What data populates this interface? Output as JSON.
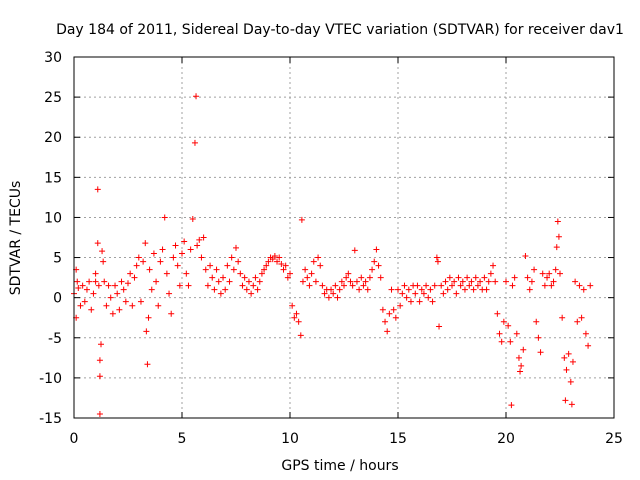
{
  "colors": {
    "series": "#ff0000",
    "grid": "#a0a0a0",
    "axis": "#000000",
    "background": "#ffffff"
  },
  "chart_data": {
    "type": "scatter",
    "title": "Day 184 of 2011, Sidereal Day-to-day VTEC variation (SDTVAR) for receiver dav1",
    "xlabel": "GPS time / hours",
    "ylabel": "SDTVAR / TECUs",
    "xlim": [
      0,
      25
    ],
    "ylim": [
      -15,
      30
    ],
    "xticks": [
      0,
      5,
      10,
      15,
      20,
      25
    ],
    "xtick_labels": [
      "0",
      "5",
      "10",
      "15",
      "20",
      "25"
    ],
    "yticks": [
      -15,
      -10,
      -5,
      0,
      5,
      10,
      15,
      20,
      25,
      30
    ],
    "ytick_labels": [
      "-15",
      "-10",
      "-5",
      "0",
      "5",
      "10",
      "15",
      "20",
      "25",
      "30"
    ],
    "grid": true,
    "marker": "+",
    "series": [
      {
        "name": "SDTVAR",
        "points": [
          [
            0.0,
            0.5
          ],
          [
            0.1,
            3.5
          ],
          [
            0.1,
            -2.5
          ],
          [
            0.15,
            2.0
          ],
          [
            0.2,
            1.2
          ],
          [
            0.3,
            -1.0
          ],
          [
            0.4,
            1.5
          ],
          [
            0.5,
            -0.5
          ],
          [
            0.6,
            1.0
          ],
          [
            0.7,
            2.0
          ],
          [
            0.8,
            -1.5
          ],
          [
            0.9,
            0.5
          ],
          [
            1.0,
            2.0
          ],
          [
            1.0,
            3.0
          ],
          [
            1.1,
            13.5
          ],
          [
            1.1,
            6.8
          ],
          [
            1.15,
            1.5
          ],
          [
            1.2,
            -7.8
          ],
          [
            1.2,
            -9.8
          ],
          [
            1.2,
            -14.5
          ],
          [
            1.25,
            -5.8
          ],
          [
            1.3,
            5.8
          ],
          [
            1.35,
            4.5
          ],
          [
            1.4,
            2.0
          ],
          [
            1.5,
            -1.0
          ],
          [
            1.6,
            1.5
          ],
          [
            1.7,
            0.0
          ],
          [
            1.8,
            -2.0
          ],
          [
            1.9,
            1.5
          ],
          [
            2.0,
            0.5
          ],
          [
            2.1,
            -1.5
          ],
          [
            2.2,
            2.0
          ],
          [
            2.3,
            1.0
          ],
          [
            2.4,
            -0.5
          ],
          [
            2.5,
            1.8
          ],
          [
            2.6,
            3.0
          ],
          [
            2.7,
            -1.0
          ],
          [
            2.8,
            2.5
          ],
          [
            2.9,
            4.0
          ],
          [
            3.0,
            5.0
          ],
          [
            3.1,
            -0.5
          ],
          [
            3.2,
            4.5
          ],
          [
            3.3,
            6.8
          ],
          [
            3.35,
            -4.2
          ],
          [
            3.4,
            -8.3
          ],
          [
            3.45,
            -2.5
          ],
          [
            3.5,
            3.5
          ],
          [
            3.6,
            1.0
          ],
          [
            3.7,
            5.5
          ],
          [
            3.8,
            2.0
          ],
          [
            3.9,
            -1.0
          ],
          [
            4.0,
            4.5
          ],
          [
            4.1,
            6.0
          ],
          [
            4.2,
            10.0
          ],
          [
            4.3,
            3.0
          ],
          [
            4.4,
            0.5
          ],
          [
            4.5,
            -2.0
          ],
          [
            4.6,
            5.0
          ],
          [
            4.7,
            6.5
          ],
          [
            4.8,
            4.0
          ],
          [
            4.9,
            1.5
          ],
          [
            5.0,
            5.5
          ],
          [
            5.1,
            7.0
          ],
          [
            5.2,
            3.0
          ],
          [
            5.3,
            1.5
          ],
          [
            5.4,
            6.0
          ],
          [
            5.5,
            9.8
          ],
          [
            5.6,
            19.3
          ],
          [
            5.65,
            25.1
          ],
          [
            5.7,
            6.5
          ],
          [
            5.8,
            7.2
          ],
          [
            5.9,
            5.0
          ],
          [
            6.0,
            7.5
          ],
          [
            6.1,
            3.5
          ],
          [
            6.2,
            1.5
          ],
          [
            6.3,
            4.0
          ],
          [
            6.4,
            2.5
          ],
          [
            6.5,
            1.0
          ],
          [
            6.6,
            3.5
          ],
          [
            6.7,
            2.0
          ],
          [
            6.8,
            0.5
          ],
          [
            6.9,
            2.5
          ],
          [
            7.0,
            1.0
          ],
          [
            7.1,
            4.0
          ],
          [
            7.2,
            2.0
          ],
          [
            7.3,
            5.0
          ],
          [
            7.4,
            3.5
          ],
          [
            7.5,
            6.2
          ],
          [
            7.6,
            4.5
          ],
          [
            7.7,
            3.0
          ],
          [
            7.8,
            1.5
          ],
          [
            7.9,
            2.5
          ],
          [
            8.0,
            1.0
          ],
          [
            8.1,
            2.0
          ],
          [
            8.2,
            0.5
          ],
          [
            8.3,
            1.5
          ],
          [
            8.4,
            2.5
          ],
          [
            8.5,
            1.0
          ],
          [
            8.6,
            2.0
          ],
          [
            8.7,
            3.0
          ],
          [
            8.8,
            3.5
          ],
          [
            8.9,
            4.0
          ],
          [
            9.0,
            4.5
          ],
          [
            9.1,
            5.0
          ],
          [
            9.2,
            4.8
          ],
          [
            9.3,
            5.2
          ],
          [
            9.4,
            4.5
          ],
          [
            9.5,
            5.0
          ],
          [
            9.6,
            4.2
          ],
          [
            9.7,
            3.5
          ],
          [
            9.8,
            4.0
          ],
          [
            9.9,
            2.5
          ],
          [
            10.0,
            3.0
          ],
          [
            10.1,
            -1.0
          ],
          [
            10.2,
            -2.5
          ],
          [
            10.3,
            -2.0
          ],
          [
            10.4,
            -3.0
          ],
          [
            10.5,
            -4.7
          ],
          [
            10.55,
            9.7
          ],
          [
            10.6,
            2.0
          ],
          [
            10.7,
            3.5
          ],
          [
            10.8,
            2.5
          ],
          [
            10.9,
            1.5
          ],
          [
            11.0,
            3.0
          ],
          [
            11.1,
            4.5
          ],
          [
            11.2,
            2.0
          ],
          [
            11.3,
            5.0
          ],
          [
            11.4,
            4.0
          ],
          [
            11.5,
            1.5
          ],
          [
            11.6,
            0.5
          ],
          [
            11.7,
            1.0
          ],
          [
            11.8,
            0.0
          ],
          [
            11.9,
            1.0
          ],
          [
            12.0,
            0.5
          ],
          [
            12.1,
            1.5
          ],
          [
            12.2,
            0.0
          ],
          [
            12.3,
            1.0
          ],
          [
            12.4,
            2.0
          ],
          [
            12.5,
            1.5
          ],
          [
            12.6,
            2.5
          ],
          [
            12.7,
            3.0
          ],
          [
            12.8,
            2.0
          ],
          [
            12.9,
            1.5
          ],
          [
            13.0,
            5.9
          ],
          [
            13.1,
            2.0
          ],
          [
            13.2,
            1.0
          ],
          [
            13.3,
            2.5
          ],
          [
            13.4,
            1.5
          ],
          [
            13.5,
            2.0
          ],
          [
            13.6,
            1.0
          ],
          [
            13.7,
            2.5
          ],
          [
            13.8,
            3.5
          ],
          [
            13.9,
            4.5
          ],
          [
            14.0,
            6.0
          ],
          [
            14.1,
            4.0
          ],
          [
            14.2,
            2.5
          ],
          [
            14.3,
            -1.5
          ],
          [
            14.4,
            -3.0
          ],
          [
            14.5,
            -4.2
          ],
          [
            14.6,
            -2.0
          ],
          [
            14.7,
            1.0
          ],
          [
            14.8,
            -1.5
          ],
          [
            14.9,
            -2.5
          ],
          [
            15.0,
            1.0
          ],
          [
            15.1,
            -1.0
          ],
          [
            15.2,
            0.5
          ],
          [
            15.3,
            1.5
          ],
          [
            15.4,
            0.0
          ],
          [
            15.5,
            1.0
          ],
          [
            15.6,
            -0.5
          ],
          [
            15.7,
            1.5
          ],
          [
            15.8,
            0.5
          ],
          [
            15.9,
            1.5
          ],
          [
            16.0,
            -0.5
          ],
          [
            16.1,
            1.0
          ],
          [
            16.2,
            0.5
          ],
          [
            16.3,
            1.5
          ],
          [
            16.4,
            0.0
          ],
          [
            16.5,
            1.0
          ],
          [
            16.6,
            -0.5
          ],
          [
            16.7,
            1.5
          ],
          [
            16.8,
            5.0
          ],
          [
            16.85,
            4.5
          ],
          [
            16.9,
            -3.6
          ],
          [
            17.0,
            1.5
          ],
          [
            17.1,
            0.5
          ],
          [
            17.2,
            2.0
          ],
          [
            17.3,
            1.0
          ],
          [
            17.4,
            2.5
          ],
          [
            17.5,
            1.5
          ],
          [
            17.6,
            2.0
          ],
          [
            17.7,
            0.5
          ],
          [
            17.8,
            2.5
          ],
          [
            17.9,
            1.5
          ],
          [
            18.0,
            2.0
          ],
          [
            18.1,
            1.0
          ],
          [
            18.2,
            2.5
          ],
          [
            18.3,
            1.5
          ],
          [
            18.4,
            2.0
          ],
          [
            18.5,
            1.0
          ],
          [
            18.6,
            2.5
          ],
          [
            18.7,
            1.5
          ],
          [
            18.8,
            2.0
          ],
          [
            18.9,
            1.0
          ],
          [
            19.0,
            2.5
          ],
          [
            19.1,
            1.0
          ],
          [
            19.2,
            2.0
          ],
          [
            19.3,
            3.0
          ],
          [
            19.4,
            4.0
          ],
          [
            19.5,
            2.0
          ],
          [
            19.6,
            -2.0
          ],
          [
            19.7,
            -4.5
          ],
          [
            19.8,
            -5.5
          ],
          [
            19.9,
            -3.0
          ],
          [
            20.0,
            2.0
          ],
          [
            20.1,
            -3.5
          ],
          [
            20.2,
            -5.5
          ],
          [
            20.25,
            -13.4
          ],
          [
            20.3,
            1.5
          ],
          [
            20.4,
            2.5
          ],
          [
            20.5,
            -4.5
          ],
          [
            20.6,
            -7.5
          ],
          [
            20.65,
            -9.2
          ],
          [
            20.7,
            -8.5
          ],
          [
            20.8,
            -6.5
          ],
          [
            20.9,
            5.2
          ],
          [
            21.0,
            2.5
          ],
          [
            21.1,
            1.0
          ],
          [
            21.2,
            2.0
          ],
          [
            21.3,
            3.5
          ],
          [
            21.4,
            -3.0
          ],
          [
            21.5,
            -5.0
          ],
          [
            21.6,
            -6.8
          ],
          [
            21.7,
            3.0
          ],
          [
            21.8,
            1.5
          ],
          [
            21.9,
            2.5
          ],
          [
            22.0,
            3.0
          ],
          [
            22.1,
            1.5
          ],
          [
            22.2,
            2.0
          ],
          [
            22.3,
            3.5
          ],
          [
            22.35,
            6.3
          ],
          [
            22.4,
            9.5
          ],
          [
            22.45,
            7.6
          ],
          [
            22.5,
            3.0
          ],
          [
            22.6,
            -2.5
          ],
          [
            22.7,
            -7.5
          ],
          [
            22.75,
            -12.8
          ],
          [
            22.8,
            -9.0
          ],
          [
            22.9,
            -7.0
          ],
          [
            23.0,
            -10.5
          ],
          [
            23.05,
            -13.3
          ],
          [
            23.1,
            -8.0
          ],
          [
            23.2,
            2.0
          ],
          [
            23.3,
            -3.0
          ],
          [
            23.4,
            1.5
          ],
          [
            23.5,
            -2.5
          ],
          [
            23.6,
            1.0
          ],
          [
            23.7,
            -4.5
          ],
          [
            23.8,
            -6.0
          ],
          [
            23.9,
            1.5
          ]
        ]
      }
    ]
  }
}
